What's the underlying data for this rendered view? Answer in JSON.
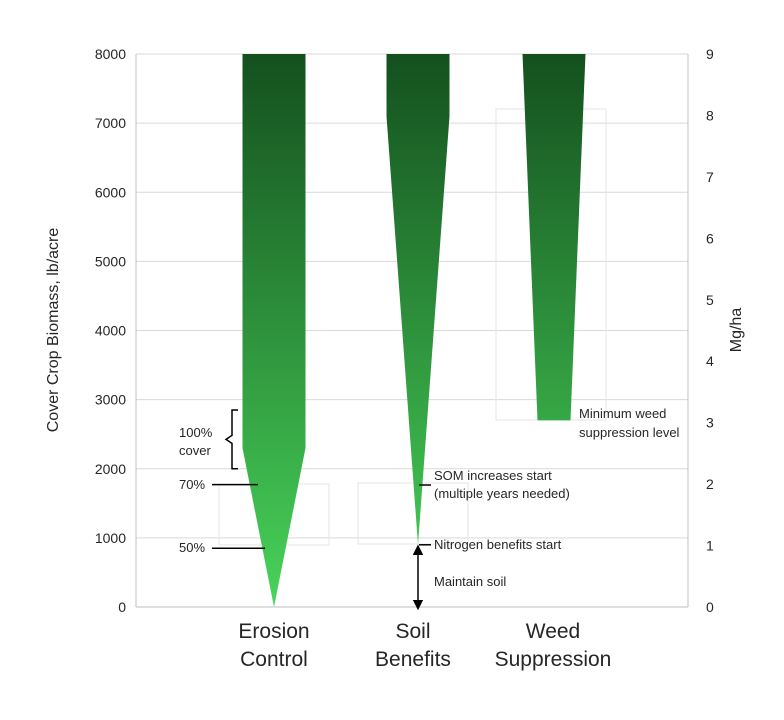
{
  "chart_data": {
    "type": "bar",
    "shape": "tapered-spike",
    "categories": [
      {
        "line1": "Erosion",
        "line2": "Control"
      },
      {
        "line1": "Soil",
        "line2": "Benefits"
      },
      {
        "line1": "Weed",
        "line2": "Suppression"
      }
    ],
    "series": [
      {
        "name": "Erosion Control",
        "min": 0,
        "taper_end": 2300,
        "max": 8000
      },
      {
        "name": "Soil Benefits",
        "min": 900,
        "taper_end": 7100,
        "max": 8000
      },
      {
        "name": "Weed Suppression",
        "min": 2700,
        "taper_end": 8000,
        "max": 8000
      }
    ],
    "ylabel": "Cover Crop Biomass, lb/acre",
    "ylabel_right": "Mg/ha",
    "ylim": [
      0,
      8000
    ],
    "yticks": [
      "0",
      "1000",
      "2000",
      "3000",
      "4000",
      "5000",
      "6000",
      "7000",
      "8000"
    ],
    "ylim_right": [
      0,
      9
    ],
    "yticks_right": [
      "0",
      "1",
      "2",
      "3",
      "4",
      "5",
      "6",
      "7",
      "8",
      "9"
    ],
    "grid": true,
    "colors": {
      "top": "#14501e",
      "bottom": "#48d45a",
      "grid": "#d9d9d9",
      "axis": "#bfbfbf",
      "text": "#262626"
    },
    "annotations": {
      "cover_100_line1": "100%",
      "cover_100_line2": "cover",
      "cover_100_range": [
        2000,
        2850
      ],
      "cover_70": "70%",
      "cover_70_value": 1770,
      "cover_50": "50%",
      "cover_50_value": 850,
      "som_line1": "SOM increases start",
      "som_line2": "(multiple years needed)",
      "nitrogen": "Nitrogen benefits start",
      "nitrogen_value": 900,
      "maintain": "Maintain soil",
      "weed_line1": "Minimum weed",
      "weed_line2": "suppression level"
    }
  }
}
